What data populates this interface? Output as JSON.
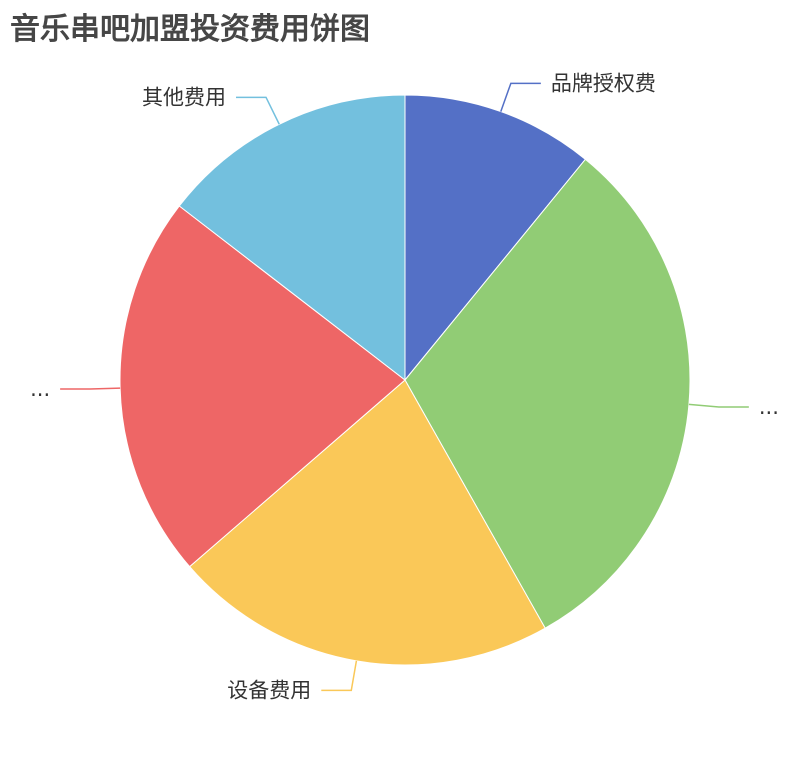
{
  "chart_data": {
    "type": "pie",
    "title": "音乐串吧加盟投资费用饼图",
    "slices": [
      {
        "label": "品牌授权费",
        "value": 3,
        "color": "#5470c6"
      },
      {
        "label": "...",
        "value": 8.5,
        "color": "#91cc75"
      },
      {
        "label": "设备费用",
        "value": 6,
        "color": "#fac858"
      },
      {
        "label": "...",
        "value": 6,
        "color": "#ee6666"
      },
      {
        "label": "其他费用",
        "value": 4,
        "color": "#73c0de"
      }
    ],
    "start_angle": "12 o'clock, clockwise",
    "legend": "none"
  }
}
